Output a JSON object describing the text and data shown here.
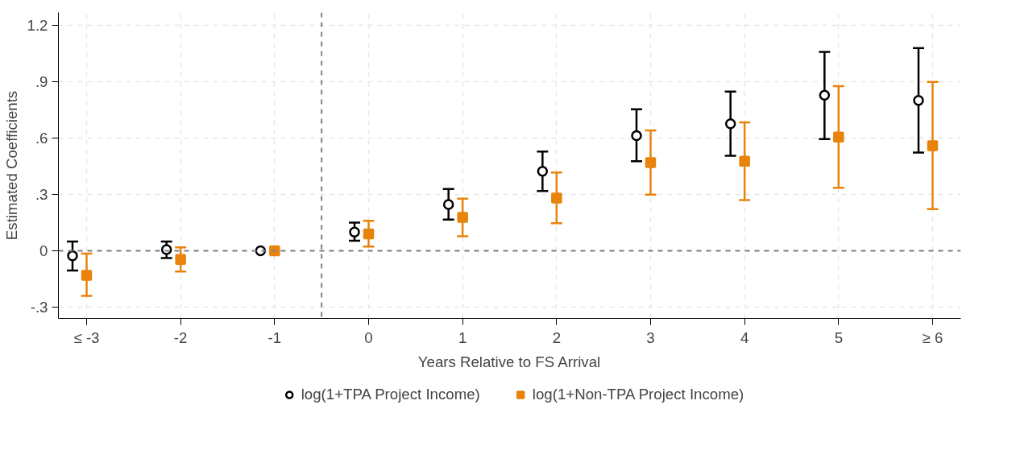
{
  "chart_data": {
    "type": "scatter",
    "xlabel": "Years Relative to FS Arrival",
    "ylabel": "Estimated Coefficients",
    "xlim": [
      -3.3,
      6.3
    ],
    "ylim": [
      -0.36,
      1.27
    ],
    "xticks": [
      {
        "value": -3,
        "label": "≤ -3"
      },
      -2,
      -1,
      0,
      1,
      2,
      3,
      4,
      5,
      {
        "value": 6,
        "label": "≥ 6"
      }
    ],
    "yticks": [
      {
        "value": -0.3,
        "label": "-.3"
      },
      0,
      {
        "value": 0.3,
        "label": ".3"
      },
      {
        "value": 0.6,
        "label": ".6"
      },
      {
        "value": 0.9,
        "label": ".9"
      },
      1.2
    ],
    "grid": true,
    "legend": "bottom",
    "ref_lines": [
      {
        "axis": "y",
        "value": 0,
        "color": "#808080",
        "line_style": "dashed"
      },
      {
        "axis": "x",
        "value": -0.5,
        "color": "#808080",
        "line_style": "dashed"
      }
    ],
    "series": [
      {
        "name": "log(1+TPA Project Income)",
        "color": "#000000",
        "marker": "circle",
        "x": [
          -3.15,
          -2.15,
          -1.15,
          -0.15,
          0.85,
          1.85,
          2.85,
          3.85,
          4.85,
          5.85
        ],
        "values": [
          -0.026,
          0.007,
          0,
          0.1,
          0.247,
          0.424,
          0.614,
          0.677,
          0.829,
          0.801
        ],
        "errors": [
          [
            -0.105,
            0.05
          ],
          [
            -0.038,
            0.05
          ],
          null,
          [
            0.054,
            0.15
          ],
          [
            0.166,
            0.329
          ],
          [
            0.319,
            0.529
          ],
          [
            0.478,
            0.754
          ],
          [
            0.507,
            0.849
          ],
          [
            0.596,
            1.06
          ],
          [
            0.524,
            1.08
          ]
        ]
      },
      {
        "name": "log(1+Non-TPA Project Income)",
        "color": "#e8830c",
        "marker": "square",
        "x": [
          -3,
          -2,
          -1,
          0,
          1,
          2,
          3,
          4,
          5,
          6
        ],
        "values": [
          -0.13,
          -0.046,
          0,
          0.09,
          0.178,
          0.281,
          0.47,
          0.477,
          0.606,
          0.56
        ],
        "errors": [
          [
            -0.24,
            -0.015
          ],
          [
            -0.11,
            0.019
          ],
          null,
          [
            0.023,
            0.16
          ],
          [
            0.077,
            0.278
          ],
          [
            0.147,
            0.417
          ],
          [
            0.3,
            0.642
          ],
          [
            0.271,
            0.684
          ],
          [
            0.336,
            0.878
          ],
          [
            0.222,
            0.9
          ]
        ]
      }
    ]
  }
}
